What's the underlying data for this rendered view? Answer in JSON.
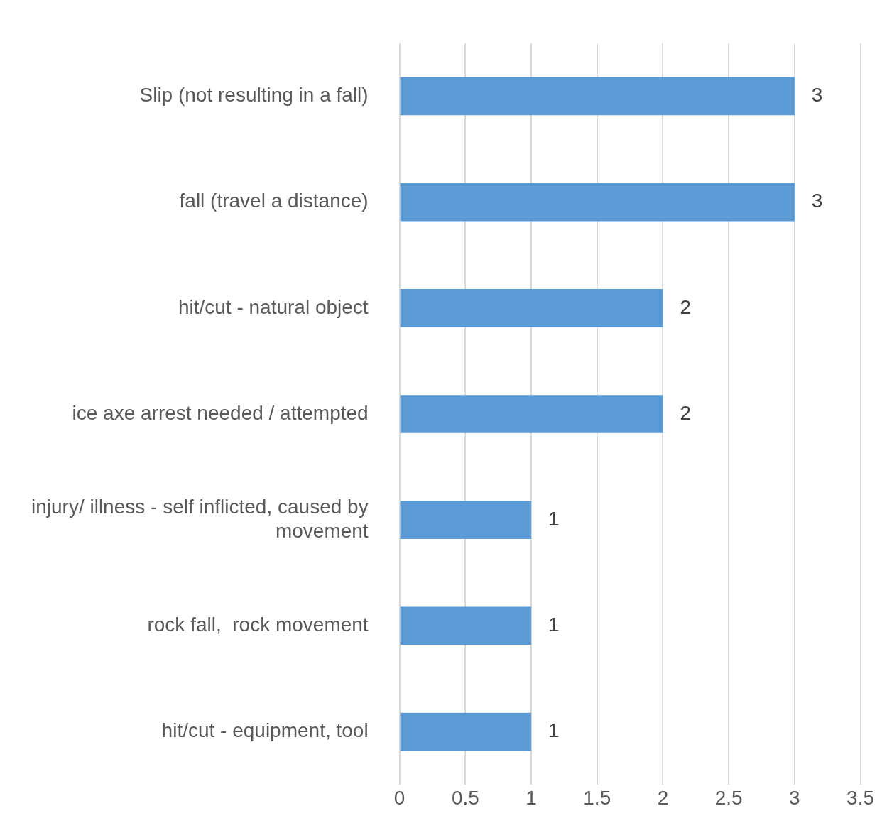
{
  "chart_data": {
    "type": "bar",
    "orientation": "horizontal",
    "categories": [
      "Slip (not resulting in a fall)",
      "fall (travel a distance)",
      "hit/cut - natural object",
      "ice axe arrest needed / attempted",
      "injury/ illness - self inflicted, caused by movement",
      "rock fall,  rock movement",
      "hit/cut - equipment, tool"
    ],
    "values": [
      3,
      3,
      2,
      2,
      1,
      1,
      1
    ],
    "color": "#5b9bd5",
    "xlim": [
      0,
      3.5
    ],
    "xticks": [
      0,
      0.5,
      1,
      1.5,
      2,
      2.5,
      3,
      3.5
    ],
    "grid": "x",
    "data_labels": true,
    "legend": false
  }
}
